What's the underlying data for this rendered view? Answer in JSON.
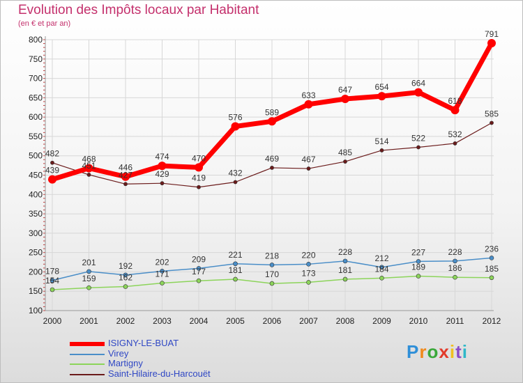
{
  "header": {
    "title": "Evolution des Impôts locaux par Habitant",
    "subtitle": "(en € et par an)"
  },
  "logo": {
    "text": "Proxiti"
  },
  "colors": {
    "isigny": "#ff0000",
    "virey": "#4a8ec8",
    "martigny": "#8cd45a",
    "saint_hilaire": "#6b1b1b",
    "title": "#c4306c",
    "legend_text": "#2f47c4"
  },
  "chart_data": {
    "type": "line",
    "title": "Evolution des Impôts locaux par Habitant",
    "subtitle": "(en € et par an)",
    "x": [
      "2000",
      "2001",
      "2002",
      "2003",
      "2004",
      "2005",
      "2006",
      "2007",
      "2008",
      "2009",
      "2010",
      "2011",
      "2012"
    ],
    "ylim": [
      100,
      800
    ],
    "yticks": [
      100,
      150,
      200,
      250,
      300,
      350,
      400,
      450,
      500,
      550,
      600,
      650,
      700,
      750,
      800
    ],
    "grid": true,
    "legend_position": "bottom-left",
    "series": [
      {
        "name": "ISIGNY-LE-BUAT",
        "color": "#ff0000",
        "values": [
          439,
          468,
          446,
          474,
          470,
          576,
          589,
          633,
          647,
          654,
          664,
          618,
          791
        ],
        "labels": [
          "439",
          "468",
          "446",
          "474",
          "470",
          "576",
          "589",
          "633",
          "647",
          "654",
          "664",
          "618",
          "791"
        ]
      },
      {
        "name": "Virey",
        "color": "#4a8ec8",
        "values": [
          178,
          201,
          192,
          202,
          209,
          221,
          218,
          220,
          228,
          212,
          227,
          228,
          236
        ],
        "labels": [
          "178",
          "201",
          "192",
          "202",
          "209",
          "221",
          "218",
          "220",
          "228",
          "212",
          "227",
          "228",
          "236"
        ]
      },
      {
        "name": "Martigny",
        "color": "#8cd45a",
        "values": [
          154,
          159,
          162,
          171,
          177,
          181,
          170,
          173,
          181,
          184,
          189,
          186,
          185
        ],
        "labels": [
          "154",
          "159",
          "162",
          "171",
          "177",
          "181",
          "170",
          "173",
          "181",
          "184",
          "189",
          "186",
          "185"
        ]
      },
      {
        "name": "Saint-Hilaire-du-Harcouët",
        "color": "#6b1b1b",
        "values": [
          482,
          451,
          427,
          429,
          419,
          432,
          469,
          467,
          485,
          514,
          522,
          532,
          585
        ],
        "labels": [
          "482",
          "451",
          "427",
          "429",
          "419",
          "432",
          "469",
          "467",
          "485",
          "514",
          "522",
          "532",
          "585"
        ]
      }
    ]
  }
}
